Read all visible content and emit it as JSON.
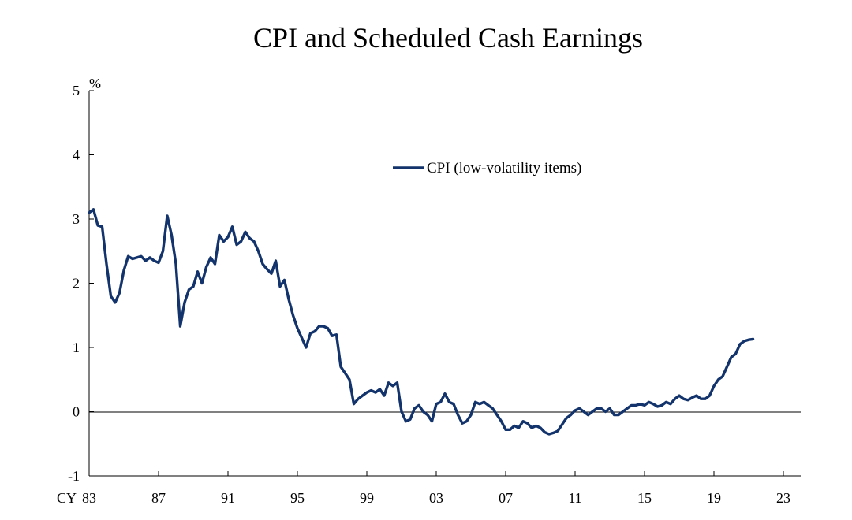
{
  "chart_data": {
    "type": "line",
    "title": "CPI and Scheduled Cash Earnings",
    "unit_label": "%",
    "x_prefix": "CY",
    "xlim": [
      1983.0,
      2024.0
    ],
    "ylim": [
      -1,
      5
    ],
    "y_ticks": [
      -1,
      0,
      1,
      2,
      3,
      4,
      5
    ],
    "y_tick_labels": [
      "-1",
      "0",
      "1",
      "2",
      "3",
      "4",
      "5"
    ],
    "x_ticks": [
      1983,
      1987,
      1991,
      1995,
      1999,
      2003,
      2007,
      2011,
      2015,
      2019,
      2023
    ],
    "x_tick_labels": [
      "83",
      "87",
      "91",
      "95",
      "99",
      "03",
      "07",
      "11",
      "15",
      "19",
      "23"
    ],
    "zero_line": true,
    "legend_position": "upper-right",
    "series": [
      {
        "name": "CPI (low-volatility items)",
        "color": "#12336b",
        "style": "solid-thick",
        "points": [
          [
            1983.0,
            3.1
          ],
          [
            1983.25,
            3.15
          ],
          [
            1983.5,
            2.9
          ],
          [
            1983.75,
            2.88
          ],
          [
            1984.0,
            2.3
          ],
          [
            1984.25,
            1.8
          ],
          [
            1984.5,
            1.7
          ],
          [
            1984.75,
            1.85
          ],
          [
            1985.0,
            2.2
          ],
          [
            1985.25,
            2.42
          ],
          [
            1985.5,
            2.38
          ],
          [
            1985.75,
            2.4
          ],
          [
            1986.0,
            2.42
          ],
          [
            1986.25,
            2.35
          ],
          [
            1986.5,
            2.4
          ],
          [
            1986.75,
            2.35
          ],
          [
            1987.0,
            2.32
          ],
          [
            1987.25,
            2.5
          ],
          [
            1987.5,
            3.05
          ],
          [
            1987.75,
            2.75
          ],
          [
            1988.0,
            2.3
          ],
          [
            1988.25,
            1.33
          ],
          [
            1988.5,
            1.7
          ],
          [
            1988.75,
            1.9
          ],
          [
            1989.0,
            1.95
          ],
          [
            1989.25,
            2.18
          ],
          [
            1989.5,
            2.0
          ],
          [
            1989.75,
            2.25
          ],
          [
            1990.0,
            2.4
          ],
          [
            1990.25,
            2.3
          ],
          [
            1990.5,
            2.75
          ],
          [
            1990.75,
            2.65
          ],
          [
            1991.0,
            2.72
          ],
          [
            1991.25,
            2.88
          ],
          [
            1991.5,
            2.6
          ],
          [
            1991.75,
            2.65
          ],
          [
            1992.0,
            2.8
          ],
          [
            1992.25,
            2.7
          ],
          [
            1992.5,
            2.65
          ],
          [
            1992.75,
            2.5
          ],
          [
            1993.0,
            2.3
          ],
          [
            1993.25,
            2.22
          ],
          [
            1993.5,
            2.15
          ],
          [
            1993.75,
            2.35
          ],
          [
            1994.0,
            1.95
          ],
          [
            1994.25,
            2.05
          ],
          [
            1994.5,
            1.75
          ],
          [
            1994.75,
            1.5
          ],
          [
            1995.0,
            1.3
          ],
          [
            1995.25,
            1.15
          ],
          [
            1995.5,
            1.0
          ],
          [
            1995.75,
            1.22
          ],
          [
            1996.0,
            1.25
          ],
          [
            1996.25,
            1.33
          ],
          [
            1996.5,
            1.33
          ],
          [
            1996.75,
            1.3
          ],
          [
            1997.0,
            1.18
          ],
          [
            1997.25,
            1.2
          ],
          [
            1997.5,
            0.7
          ],
          [
            1997.75,
            0.6
          ],
          [
            1998.0,
            0.5
          ],
          [
            1998.25,
            0.12
          ],
          [
            1998.5,
            0.2
          ],
          [
            1998.75,
            0.25
          ],
          [
            1999.0,
            0.3
          ],
          [
            1999.25,
            0.33
          ],
          [
            1999.5,
            0.3
          ],
          [
            1999.75,
            0.35
          ],
          [
            2000.0,
            0.25
          ],
          [
            2000.25,
            0.45
          ],
          [
            2000.5,
            0.4
          ],
          [
            2000.75,
            0.45
          ],
          [
            2001.0,
            0.0
          ],
          [
            2001.25,
            -0.15
          ],
          [
            2001.5,
            -0.12
          ],
          [
            2001.75,
            0.05
          ],
          [
            2002.0,
            0.1
          ],
          [
            2002.25,
            0.0
          ],
          [
            2002.5,
            -0.05
          ],
          [
            2002.75,
            -0.15
          ],
          [
            2003.0,
            0.12
          ],
          [
            2003.25,
            0.15
          ],
          [
            2003.5,
            0.28
          ],
          [
            2003.75,
            0.15
          ],
          [
            2004.0,
            0.12
          ],
          [
            2004.25,
            -0.05
          ],
          [
            2004.5,
            -0.18
          ],
          [
            2004.75,
            -0.15
          ],
          [
            2005.0,
            -0.05
          ],
          [
            2005.25,
            0.15
          ],
          [
            2005.5,
            0.12
          ],
          [
            2005.75,
            0.15
          ],
          [
            2006.0,
            0.1
          ],
          [
            2006.25,
            0.05
          ],
          [
            2006.5,
            -0.05
          ],
          [
            2006.75,
            -0.15
          ],
          [
            2007.0,
            -0.28
          ],
          [
            2007.25,
            -0.28
          ],
          [
            2007.5,
            -0.22
          ],
          [
            2007.75,
            -0.25
          ],
          [
            2008.0,
            -0.15
          ],
          [
            2008.25,
            -0.18
          ],
          [
            2008.5,
            -0.25
          ],
          [
            2008.75,
            -0.22
          ],
          [
            2009.0,
            -0.25
          ],
          [
            2009.25,
            -0.32
          ],
          [
            2009.5,
            -0.35
          ],
          [
            2009.75,
            -0.33
          ],
          [
            2010.0,
            -0.3
          ],
          [
            2010.25,
            -0.2
          ],
          [
            2010.5,
            -0.1
          ],
          [
            2010.75,
            -0.05
          ],
          [
            2011.0,
            0.02
          ],
          [
            2011.25,
            0.05
          ],
          [
            2011.5,
            0.0
          ],
          [
            2011.75,
            -0.05
          ],
          [
            2012.0,
            0.0
          ],
          [
            2012.25,
            0.05
          ],
          [
            2012.5,
            0.05
          ],
          [
            2012.75,
            0.0
          ],
          [
            2013.0,
            0.05
          ],
          [
            2013.25,
            -0.05
          ],
          [
            2013.5,
            -0.05
          ],
          [
            2013.75,
            0.0
          ],
          [
            2014.0,
            0.05
          ],
          [
            2014.25,
            0.1
          ],
          [
            2014.5,
            0.1
          ],
          [
            2014.75,
            0.12
          ],
          [
            2015.0,
            0.1
          ],
          [
            2015.25,
            0.15
          ],
          [
            2015.5,
            0.12
          ],
          [
            2015.75,
            0.08
          ],
          [
            2016.0,
            0.1
          ],
          [
            2016.25,
            0.15
          ],
          [
            2016.5,
            0.12
          ],
          [
            2016.75,
            0.2
          ],
          [
            2017.0,
            0.25
          ],
          [
            2017.25,
            0.2
          ],
          [
            2017.5,
            0.18
          ],
          [
            2017.75,
            0.22
          ],
          [
            2018.0,
            0.25
          ],
          [
            2018.25,
            0.2
          ],
          [
            2018.5,
            0.2
          ],
          [
            2018.75,
            0.25
          ],
          [
            2019.0,
            0.4
          ],
          [
            2019.25,
            0.5
          ],
          [
            2019.5,
            0.55
          ],
          [
            2019.75,
            0.7
          ],
          [
            2020.0,
            0.85
          ],
          [
            2020.25,
            0.9
          ],
          [
            2020.5,
            1.05
          ],
          [
            2020.75,
            1.1
          ],
          [
            2021.0,
            1.12
          ],
          [
            2021.25,
            1.13
          ]
        ]
      }
    ]
  }
}
